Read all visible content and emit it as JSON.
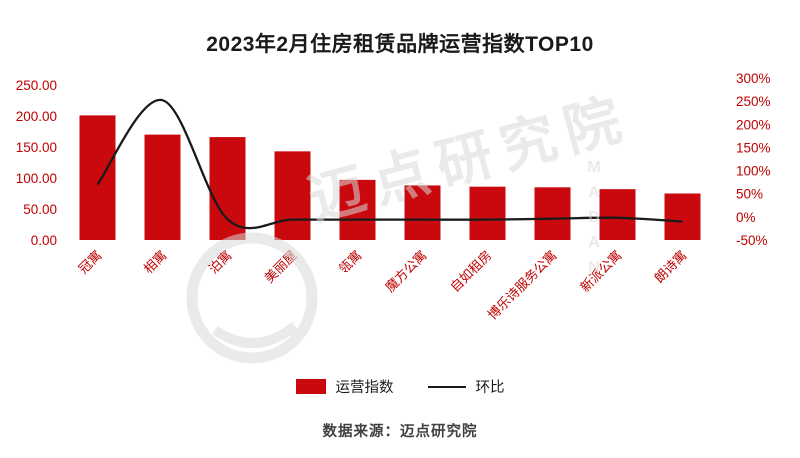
{
  "title": "2023年2月住房租赁品牌运营指数TOP10",
  "source": {
    "text": "数据来源：迈点研究院"
  },
  "watermark": {
    "brand": "迈点研究院",
    "letters": "MADAN"
  },
  "colors": {
    "bar": "#c9090e",
    "line": "#1a1a1a",
    "axis_label": "#c00000",
    "watermark": "#d9d9d9"
  },
  "chart_data": {
    "type": "bar",
    "subtype": "bar+line-dual-axis",
    "title": "2023年2月住房租赁品牌运营指数TOP10",
    "categories": [
      "冠寓",
      "相寓",
      "泊寓",
      "美丽屋",
      "瓴寓",
      "魔方公寓",
      "自如租房",
      "博乐诗服务公寓",
      "新派公寓",
      "朗诗寓"
    ],
    "series": [
      {
        "name": "运营指数",
        "type": "bar",
        "axis": "left",
        "values": [
          201,
          170,
          166,
          143,
          97,
          88,
          86,
          85,
          82,
          75
        ]
      },
      {
        "name": "环比",
        "type": "line",
        "axis": "right",
        "unit": "%",
        "values": [
          70,
          252,
          -5,
          -6,
          -6,
          -6,
          -6,
          -4,
          -2,
          -10
        ]
      }
    ],
    "left_axis": {
      "min": 0,
      "max": 250,
      "ticks": [
        250,
        200,
        150,
        100,
        50,
        0
      ],
      "labels": [
        "250.00",
        "200.00",
        "150.00",
        "100.00",
        "50.00",
        "0.00"
      ]
    },
    "right_axis": {
      "min": -50,
      "max": 300,
      "ticks": [
        300,
        250,
        200,
        150,
        100,
        50,
        0,
        -50
      ],
      "labels": [
        "300%",
        "250%",
        "200%",
        "150%",
        "100%",
        "50%",
        "0%",
        "-50%"
      ]
    },
    "grid": false,
    "legend_position": "bottom"
  }
}
